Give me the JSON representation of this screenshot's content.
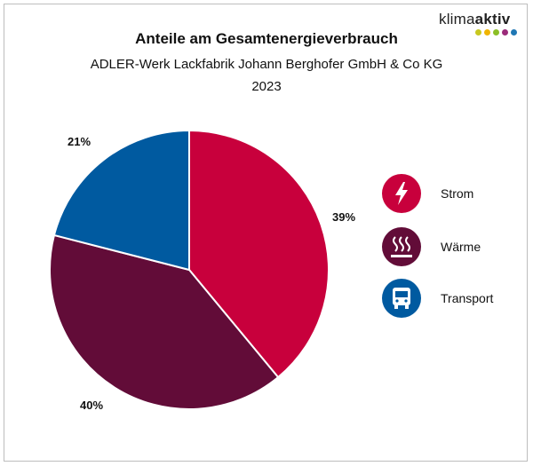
{
  "brand": {
    "name_regular": "klima",
    "name_bold": "aktiv",
    "dot_colors": [
      "#c8c820",
      "#f0b400",
      "#8cbf26",
      "#9b2b7a",
      "#1f77b4"
    ]
  },
  "chart_data": {
    "type": "pie",
    "title": "Anteile am Gesamtenergieverbrauch",
    "subtitle": "ADLER-Werk Lackfabrik Johann Berghofer GmbH & Co KG",
    "year": "2023",
    "categories": [
      "Strom",
      "Wärme",
      "Transport"
    ],
    "values": [
      39,
      40,
      21
    ],
    "value_labels": [
      "39%",
      "40%",
      "21%"
    ],
    "colors": [
      "#c8003c",
      "#620c38",
      "#005aa0"
    ],
    "start_angle_deg": 0,
    "direction": "clockwise",
    "legend_position": "right"
  },
  "legend": [
    {
      "label": "Strom",
      "icon": "lightning-icon",
      "color": "#c8003c"
    },
    {
      "label": "Wärme",
      "icon": "heat-icon",
      "color": "#620c38"
    },
    {
      "label": "Transport",
      "icon": "bus-icon",
      "color": "#005aa0"
    }
  ]
}
